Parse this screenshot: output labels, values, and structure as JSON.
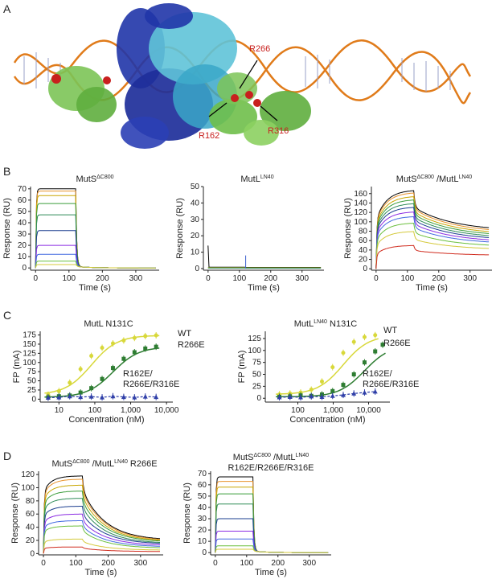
{
  "panels": {
    "A": {
      "label": "A",
      "residues": [
        "R266",
        "R162",
        "R316"
      ]
    },
    "B": {
      "label": "B"
    },
    "C": {
      "label": "C"
    },
    "D": {
      "label": "D"
    }
  },
  "colors": {
    "sensorgram": [
      "#000000",
      "#e8922b",
      "#c8a600",
      "#3a9c3a",
      "#2e8b57",
      "#1a3d8f",
      "#8a2be2",
      "#4169e1",
      "#6abf3c",
      "#d4c93a",
      "#d02b1e"
    ],
    "wt": "#d8d83a",
    "r266e": "#2e7d32",
    "triple": "#2f3fa8",
    "dna": "#e07b1a",
    "residue": "#c8201e"
  },
  "chart_data": [
    {
      "id": "B1",
      "type": "line",
      "title_main": "MutS",
      "title_sup": "ΔC800",
      "xlabel": "Time (s)",
      "ylabel": "Response (RU)",
      "xlim": [
        -15,
        370
      ],
      "ylim": [
        -2,
        72
      ],
      "xticks": [
        0,
        100,
        200,
        300
      ],
      "yticks": [
        0,
        10,
        20,
        30,
        40,
        50,
        60,
        70
      ],
      "injection_end": 120,
      "plateaus": [
        70,
        68,
        64,
        57,
        47,
        33,
        20,
        12,
        6,
        3
      ],
      "kinetics": "fast"
    },
    {
      "id": "B2",
      "type": "line",
      "title_main": "MutL",
      "title_sup": "LN40",
      "xlabel": "Time (s)",
      "ylabel": "Response (RU)",
      "xlim": [
        -15,
        370
      ],
      "ylim": [
        -1,
        50
      ],
      "xticks": [
        0,
        100,
        200,
        300
      ],
      "yticks": [
        0,
        10,
        20,
        30,
        40,
        50
      ],
      "injection_end": 120,
      "plateaus": [
        0.8,
        0.6,
        0.5,
        0.4,
        0.3
      ],
      "kinetics": "none"
    },
    {
      "id": "B3",
      "type": "line",
      "title_main": "MutS",
      "title_sup": "ΔC800",
      "title_main2": " /MutL",
      "title_sup2": "LN40",
      "xlabel": "Time (s)",
      "ylabel": "Response (RU)",
      "xlim": [
        -15,
        370
      ],
      "ylim": [
        -3,
        175
      ],
      "xticks": [
        0,
        100,
        200,
        300
      ],
      "yticks": [
        0,
        20,
        40,
        60,
        80,
        100,
        120,
        140,
        160
      ],
      "injection_end": 120,
      "plateaus": [
        168,
        163,
        155,
        148,
        140,
        132,
        122,
        112,
        98,
        80,
        50
      ],
      "ends": [
        80,
        76,
        72,
        68,
        64,
        60,
        56,
        52,
        46,
        40,
        28
      ],
      "kinetics": "slow"
    },
    {
      "id": "C1",
      "type": "scatter",
      "title_main": "MutL N131C",
      "title_sup": "",
      "xlabel": "Concentration (nM)",
      "ylabel": "FP (mA)",
      "xscale": "log",
      "xlim": [
        3,
        15000
      ],
      "ylim": [
        -8,
        185
      ],
      "xticks": [
        10,
        100,
        1000,
        10000
      ],
      "xticklabels": [
        "10",
        "100",
        "1,000",
        "10,000"
      ],
      "yticks": [
        0,
        25,
        50,
        75,
        100,
        125,
        150,
        175
      ],
      "series": [
        {
          "name": "WT",
          "x": [
            5,
            10,
            20,
            40,
            80,
            160,
            320,
            640,
            1280,
            2560,
            5120
          ],
          "y": [
            12,
            22,
            45,
            82,
            118,
            140,
            152,
            160,
            167,
            172,
            174
          ]
        },
        {
          "name": "R266E",
          "x": [
            5,
            10,
            20,
            40,
            80,
            160,
            320,
            640,
            1280,
            2560,
            5120
          ],
          "y": [
            5,
            8,
            10,
            18,
            30,
            55,
            85,
            110,
            128,
            138,
            143
          ]
        },
        {
          "name": "R162E/\nR266E/R316E",
          "x": [
            5,
            10,
            20,
            40,
            80,
            160,
            320,
            640,
            1280,
            2560,
            5120
          ],
          "y": [
            4,
            5,
            8,
            6,
            7,
            5,
            8,
            6,
            5,
            7,
            6
          ]
        }
      ]
    },
    {
      "id": "C2",
      "type": "scatter",
      "title_main": "MutL",
      "title_sup": "LN40",
      "title_main2": " N131C",
      "xlabel": "Concentration (nM)",
      "ylabel": "FP (mA)",
      "xscale": "log",
      "xlim": [
        12,
        40000
      ],
      "ylim": [
        -8,
        140
      ],
      "xticks": [
        100,
        1000,
        10000
      ],
      "xticklabels": [
        "100",
        "1,000",
        "10,000"
      ],
      "yticks": [
        0,
        25,
        50,
        75,
        100,
        125
      ],
      "series": [
        {
          "name": "WT",
          "x": [
            30,
            60,
            120,
            240,
            480,
            960,
            1920,
            3840,
            7680,
            15360
          ],
          "y": [
            8,
            10,
            12,
            18,
            35,
            65,
            95,
            118,
            128,
            132
          ]
        },
        {
          "name": "R266E",
          "x": [
            30,
            60,
            120,
            240,
            480,
            960,
            1920,
            3840,
            7680,
            15360,
            25000
          ],
          "y": [
            3,
            4,
            6,
            5,
            8,
            15,
            28,
            50,
            75,
            98,
            112
          ]
        },
        {
          "name": "R162E/\nR266E/R316E",
          "x": [
            30,
            60,
            120,
            240,
            480,
            960,
            1920,
            3840,
            7680,
            15360
          ],
          "y": [
            2,
            3,
            2,
            4,
            3,
            5,
            7,
            10,
            12,
            14
          ]
        }
      ]
    },
    {
      "id": "D1",
      "type": "line",
      "title_main": "MutS",
      "title_sup": "ΔC800",
      "title_main2": " /MutL",
      "title_sup2": "LN40",
      "title_main3": " R266E",
      "xlabel": "Time (s)",
      "ylabel": "Response (RU)",
      "xlim": [
        -15,
        370
      ],
      "ylim": [
        -2,
        125
      ],
      "xticks": [
        0,
        100,
        200,
        300
      ],
      "yticks": [
        0,
        20,
        40,
        60,
        80,
        100,
        120
      ],
      "injection_end": 120,
      "plateaus": [
        118,
        113,
        104,
        95,
        84,
        72,
        60,
        50,
        42,
        22,
        10
      ],
      "ends": [
        20,
        19,
        18,
        17,
        15,
        14,
        12,
        10,
        8,
        5,
        3
      ],
      "kinetics": "medium"
    },
    {
      "id": "D2",
      "type": "line",
      "title_main": "MutS",
      "title_sup": "ΔC800",
      "title_main2": " /MutL",
      "title_sup2": "LN40",
      "title_line2": "R162E/R266E/R316E",
      "xlabel": "Time (s)",
      "ylabel": "Response (RU)",
      "xlim": [
        -15,
        370
      ],
      "ylim": [
        -2,
        72
      ],
      "xticks": [
        0,
        100,
        200,
        300
      ],
      "yticks": [
        0,
        10,
        20,
        30,
        40,
        50,
        60,
        70
      ],
      "injection_end": 120,
      "plateaus": [
        67,
        63,
        58,
        52,
        43,
        30,
        19,
        12,
        6,
        3
      ],
      "kinetics": "fast"
    }
  ]
}
